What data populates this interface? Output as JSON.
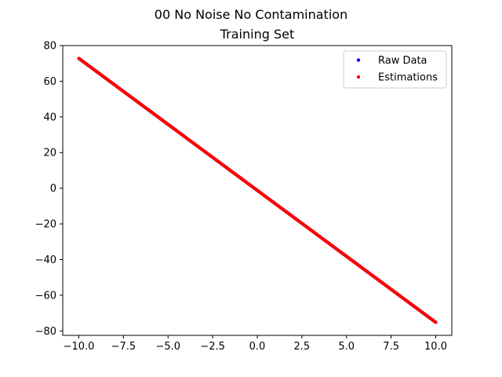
{
  "chart_data": {
    "type": "scatter",
    "suptitle": "00 No Noise No Contamination",
    "title": "Training Set",
    "xlabel": "",
    "ylabel": "",
    "xlim": [
      -10.9,
      10.9
    ],
    "ylim": [
      -82.5,
      80
    ],
    "xticks": [
      -10.0,
      -7.5,
      -5.0,
      -2.5,
      0.0,
      2.5,
      5.0,
      7.5,
      10.0
    ],
    "xtick_labels": [
      "−10.0",
      "−7.5",
      "−5.0",
      "−2.5",
      "0.0",
      "2.5",
      "5.0",
      "7.5",
      "10.0"
    ],
    "yticks": [
      -80,
      -60,
      -40,
      -20,
      0,
      20,
      40,
      60,
      80
    ],
    "ytick_labels": [
      "−80",
      "−60",
      "−40",
      "−20",
      "0",
      "20",
      "40",
      "60",
      "80"
    ],
    "grid": false,
    "legend_position": "top-right",
    "series": [
      {
        "name": "Raw Data",
        "color": "#0000ff",
        "x_range": [
          -10,
          10
        ],
        "slope": -7.4,
        "intercept": -1.2,
        "x": [
          -10,
          -8,
          -6,
          -4,
          -2,
          0,
          2,
          4,
          6,
          8,
          10
        ],
        "y": [
          72.8,
          58.0,
          43.2,
          28.4,
          13.6,
          -1.2,
          -16.0,
          -30.8,
          -45.6,
          -60.4,
          -75.2
        ]
      },
      {
        "name": "Estimations",
        "color": "#ff0000",
        "x_range": [
          -10,
          10
        ],
        "slope": -7.4,
        "intercept": -1.2,
        "x": [
          -10,
          -8,
          -6,
          -4,
          -2,
          0,
          2,
          4,
          6,
          8,
          10
        ],
        "y": [
          72.8,
          58.0,
          43.2,
          28.4,
          13.6,
          -1.2,
          -16.0,
          -30.8,
          -45.6,
          -60.4,
          -75.2
        ]
      }
    ]
  }
}
